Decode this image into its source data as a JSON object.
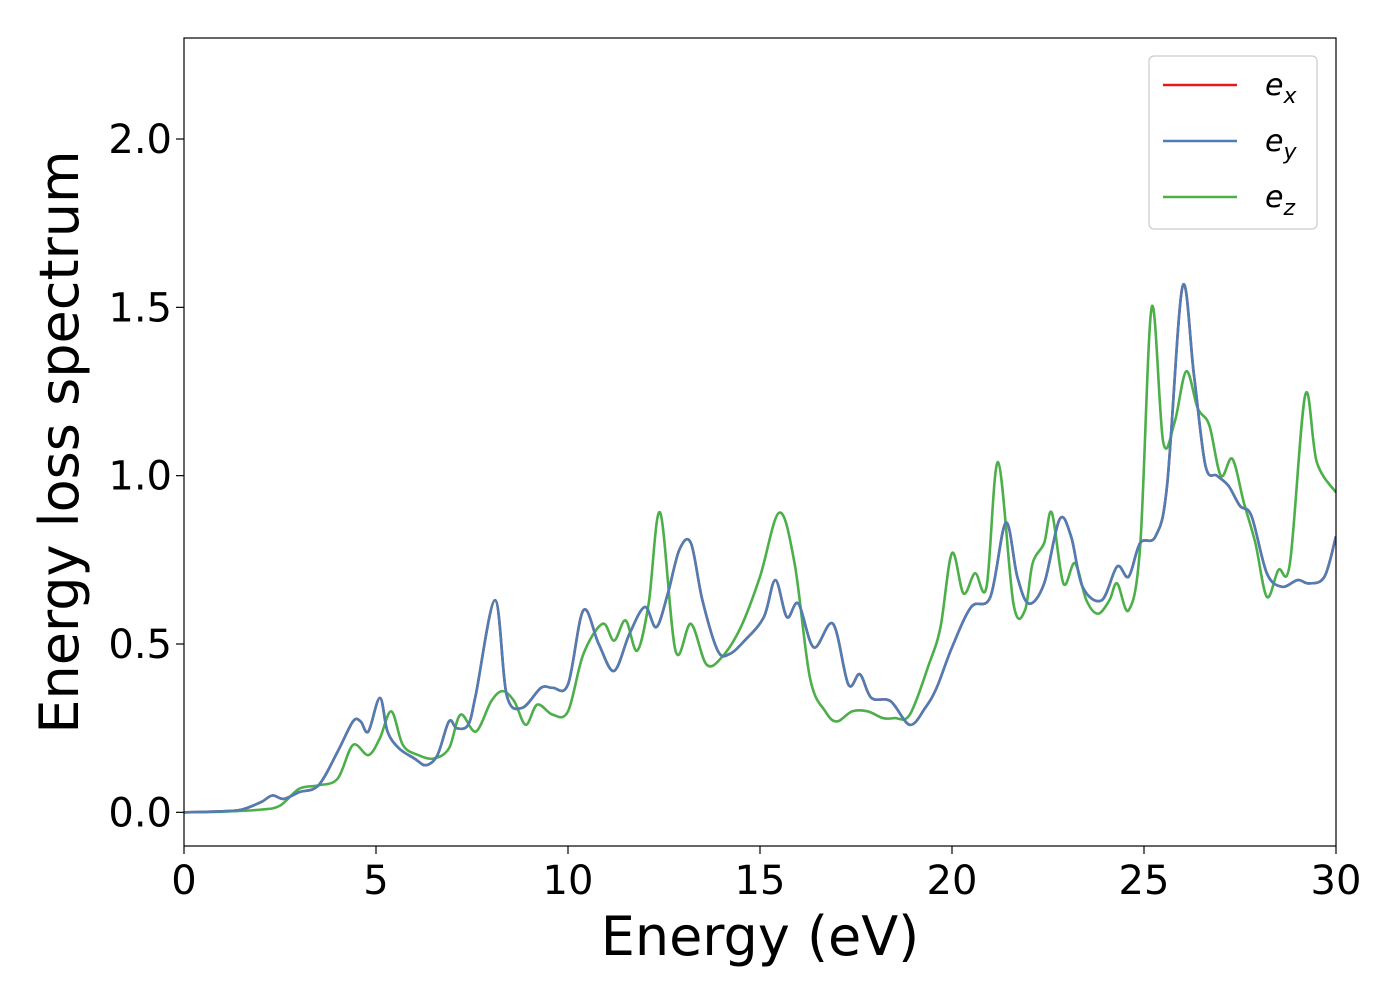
{
  "chart_data": {
    "type": "line",
    "xlabel": "Energy (eV)",
    "ylabel": "Energy loss spectrum",
    "xlim": [
      0,
      30
    ],
    "ylim": [
      -0.1,
      2.3
    ],
    "x_ticks": [
      0,
      5,
      10,
      15,
      20,
      25,
      30
    ],
    "y_ticks": [
      0.0,
      0.5,
      1.0,
      1.5,
      2.0
    ],
    "x_tick_labels": [
      "0",
      "5",
      "10",
      "15",
      "20",
      "25",
      "30"
    ],
    "y_tick_labels": [
      "0.0",
      "0.5",
      "1.0",
      "1.5",
      "2.0"
    ],
    "grid": false,
    "legend_position": "top-right",
    "series": [
      {
        "name": "e_x",
        "legend_base": "e",
        "legend_sub": "x",
        "color": "#e41a1c",
        "x": [
          0,
          1,
          1.5,
          2,
          2.3,
          2.6,
          3,
          3.5,
          4,
          4.4,
          4.6,
          4.8,
          5.1,
          5.3,
          5.6,
          6,
          6.3,
          6.6,
          6.9,
          7.1,
          7.4,
          7.6,
          8.1,
          8.4,
          8.8,
          9.3,
          9.6,
          10,
          10.4,
          10.8,
          11.2,
          11.6,
          12,
          12.3,
          12.6,
          12.9,
          13.2,
          13.5,
          13.9,
          14.2,
          14.6,
          15.1,
          15.4,
          15.7,
          16,
          16.4,
          16.9,
          17.3,
          17.6,
          17.9,
          18.4,
          18.9,
          19.3,
          19.6,
          20,
          20.5,
          21,
          21.4,
          21.7,
          22,
          22.4,
          22.8,
          23.1,
          23.4,
          23.9,
          24.3,
          24.6,
          24.9,
          25.3,
          25.6,
          26,
          26.3,
          26.6,
          26.9,
          27.2,
          27.5,
          27.8,
          28.2,
          28.6,
          29,
          29.3,
          29.7,
          30
        ],
        "y": [
          0,
          0.003,
          0.008,
          0.03,
          0.05,
          0.04,
          0.06,
          0.08,
          0.18,
          0.27,
          0.27,
          0.24,
          0.34,
          0.24,
          0.19,
          0.16,
          0.14,
          0.17,
          0.27,
          0.25,
          0.26,
          0.35,
          0.63,
          0.35,
          0.31,
          0.37,
          0.37,
          0.38,
          0.6,
          0.5,
          0.42,
          0.53,
          0.61,
          0.55,
          0.65,
          0.78,
          0.8,
          0.63,
          0.48,
          0.47,
          0.51,
          0.58,
          0.69,
          0.58,
          0.62,
          0.49,
          0.56,
          0.38,
          0.41,
          0.34,
          0.33,
          0.26,
          0.31,
          0.37,
          0.49,
          0.61,
          0.64,
          0.86,
          0.7,
          0.62,
          0.68,
          0.87,
          0.82,
          0.67,
          0.63,
          0.73,
          0.7,
          0.8,
          0.82,
          0.97,
          1.56,
          1.3,
          1.03,
          1.0,
          0.97,
          0.91,
          0.88,
          0.71,
          0.67,
          0.69,
          0.68,
          0.7,
          0.82
        ]
      },
      {
        "name": "e_y",
        "legend_base": "e",
        "legend_sub": "y",
        "color": "#4f7eb5",
        "x": [
          0,
          1,
          1.5,
          2,
          2.3,
          2.6,
          3,
          3.5,
          4,
          4.4,
          4.6,
          4.8,
          5.1,
          5.3,
          5.6,
          6,
          6.3,
          6.6,
          6.9,
          7.1,
          7.4,
          7.6,
          8.1,
          8.4,
          8.8,
          9.3,
          9.6,
          10,
          10.4,
          10.8,
          11.2,
          11.6,
          12,
          12.3,
          12.6,
          12.9,
          13.2,
          13.5,
          13.9,
          14.2,
          14.6,
          15.1,
          15.4,
          15.7,
          16,
          16.4,
          16.9,
          17.3,
          17.6,
          17.9,
          18.4,
          18.9,
          19.3,
          19.6,
          20,
          20.5,
          21,
          21.4,
          21.7,
          22,
          22.4,
          22.8,
          23.1,
          23.4,
          23.9,
          24.3,
          24.6,
          24.9,
          25.3,
          25.6,
          26,
          26.3,
          26.6,
          26.9,
          27.2,
          27.5,
          27.8,
          28.2,
          28.6,
          29,
          29.3,
          29.7,
          30
        ],
        "y": [
          0,
          0.003,
          0.008,
          0.03,
          0.05,
          0.04,
          0.06,
          0.08,
          0.18,
          0.27,
          0.27,
          0.24,
          0.34,
          0.24,
          0.19,
          0.16,
          0.14,
          0.17,
          0.27,
          0.25,
          0.26,
          0.35,
          0.63,
          0.35,
          0.31,
          0.37,
          0.37,
          0.38,
          0.6,
          0.5,
          0.42,
          0.53,
          0.61,
          0.55,
          0.65,
          0.78,
          0.8,
          0.63,
          0.48,
          0.47,
          0.51,
          0.58,
          0.69,
          0.58,
          0.62,
          0.49,
          0.56,
          0.38,
          0.41,
          0.34,
          0.33,
          0.26,
          0.31,
          0.37,
          0.49,
          0.61,
          0.64,
          0.86,
          0.7,
          0.62,
          0.68,
          0.87,
          0.82,
          0.67,
          0.63,
          0.73,
          0.7,
          0.8,
          0.82,
          0.97,
          1.56,
          1.3,
          1.03,
          1.0,
          0.97,
          0.91,
          0.88,
          0.71,
          0.67,
          0.69,
          0.68,
          0.7,
          0.82
        ]
      },
      {
        "name": "e_z",
        "legend_base": "e",
        "legend_sub": "z",
        "color": "#4daf4a",
        "x": [
          0,
          1,
          2,
          2.5,
          3,
          3.5,
          4,
          4.4,
          4.8,
          5.1,
          5.4,
          5.7,
          6.1,
          6.5,
          6.9,
          7.2,
          7.6,
          8,
          8.3,
          8.6,
          8.9,
          9.2,
          9.6,
          10,
          10.4,
          10.9,
          11.2,
          11.5,
          11.8,
          12.1,
          12.4,
          12.8,
          13.2,
          13.6,
          14,
          14.5,
          15,
          15.5,
          15.9,
          16.3,
          16.7,
          17,
          17.4,
          17.8,
          18.2,
          18.5,
          18.9,
          19.4,
          19.7,
          20,
          20.3,
          20.6,
          20.9,
          21.2,
          21.6,
          21.9,
          22.1,
          22.4,
          22.6,
          22.9,
          23.2,
          23.5,
          23.8,
          24.1,
          24.3,
          24.6,
          24.9,
          25.2,
          25.5,
          25.8,
          26.1,
          26.4,
          26.7,
          27,
          27.3,
          27.6,
          27.9,
          28.2,
          28.5,
          28.8,
          29.2,
          29.5,
          30
        ],
        "y": [
          0,
          0.002,
          0.008,
          0.02,
          0.07,
          0.08,
          0.1,
          0.2,
          0.17,
          0.22,
          0.3,
          0.2,
          0.17,
          0.16,
          0.19,
          0.29,
          0.24,
          0.33,
          0.36,
          0.33,
          0.26,
          0.32,
          0.29,
          0.3,
          0.47,
          0.56,
          0.51,
          0.57,
          0.48,
          0.62,
          0.89,
          0.48,
          0.56,
          0.44,
          0.46,
          0.55,
          0.7,
          0.89,
          0.74,
          0.4,
          0.3,
          0.27,
          0.3,
          0.3,
          0.28,
          0.28,
          0.29,
          0.44,
          0.55,
          0.77,
          0.65,
          0.71,
          0.67,
          1.04,
          0.62,
          0.6,
          0.74,
          0.8,
          0.89,
          0.68,
          0.74,
          0.63,
          0.59,
          0.63,
          0.68,
          0.6,
          0.79,
          1.5,
          1.1,
          1.16,
          1.31,
          1.2,
          1.15,
          1.0,
          1.05,
          0.92,
          0.8,
          0.64,
          0.72,
          0.74,
          1.24,
          1.04,
          0.95
        ]
      }
    ]
  }
}
